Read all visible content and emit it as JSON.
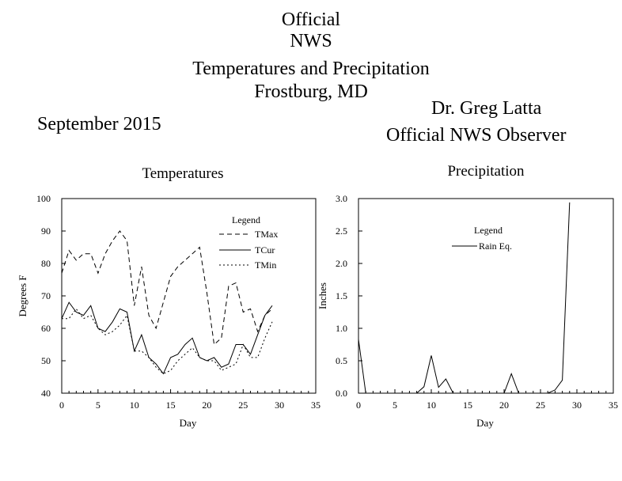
{
  "header": {
    "line1": "Official",
    "line2": "NWS",
    "line3": "Temperatures and Precipitation",
    "line4": "Frostburg, MD",
    "observer_name": "Dr. Greg Latta",
    "observer_title": "Official NWS Observer",
    "month": "September 2015"
  },
  "chart_data": [
    {
      "type": "line",
      "title": "Temperatures",
      "xlabel": "Day",
      "ylabel": "Degrees F",
      "xlim": [
        0,
        35
      ],
      "ylim": [
        40,
        100
      ],
      "xticks": [
        0,
        5,
        10,
        15,
        20,
        25,
        30,
        35
      ],
      "yticks": [
        40,
        50,
        60,
        70,
        80,
        90,
        100
      ],
      "legend_title": "Legend",
      "legend_position": "top-right",
      "grid": false,
      "series": [
        {
          "name": "TMax",
          "style": "dashed",
          "x": [
            0,
            1,
            2,
            3,
            4,
            5,
            6,
            7,
            8,
            9,
            10,
            11,
            12,
            13,
            14,
            15,
            16,
            17,
            18,
            19,
            20,
            21,
            22,
            23,
            24,
            25,
            26,
            27,
            28,
            29
          ],
          "y": [
            77,
            84,
            81,
            83,
            83,
            77,
            83,
            87,
            90,
            87,
            67,
            79,
            64,
            60,
            68,
            76,
            79,
            81,
            83,
            85,
            71,
            55,
            57,
            73,
            74,
            65,
            66,
            59,
            64,
            66
          ]
        },
        {
          "name": "TCur",
          "style": "solid",
          "x": [
            0,
            1,
            2,
            3,
            4,
            5,
            6,
            7,
            8,
            9,
            10,
            11,
            12,
            13,
            14,
            15,
            16,
            17,
            18,
            19,
            20,
            21,
            22,
            23,
            24,
            25,
            26,
            27,
            28,
            29
          ],
          "y": [
            63,
            68,
            65,
            64,
            67,
            60,
            59,
            62,
            66,
            65,
            53,
            58,
            51,
            49,
            46,
            51,
            52,
            55,
            57,
            51,
            50,
            51,
            48,
            49,
            55,
            55,
            52,
            58,
            64,
            67
          ]
        },
        {
          "name": "TMin",
          "style": "dotted",
          "x": [
            0,
            1,
            2,
            3,
            4,
            5,
            6,
            7,
            8,
            9,
            10,
            11,
            12,
            13,
            14,
            15,
            16,
            17,
            18,
            19,
            20,
            21,
            22,
            23,
            24,
            25,
            26,
            27,
            28,
            29
          ],
          "y": [
            63,
            63,
            66,
            63,
            64,
            60,
            58,
            59,
            61,
            64,
            53,
            53,
            51,
            48,
            46,
            47,
            50,
            52,
            54,
            51,
            50,
            50,
            47,
            48,
            49,
            55,
            51,
            51,
            57,
            62
          ]
        }
      ]
    },
    {
      "type": "line",
      "title": "Precipitation",
      "xlabel": "Day",
      "ylabel": "Inches",
      "xlim": [
        0,
        35
      ],
      "ylim": [
        0,
        3
      ],
      "xticks": [
        0,
        5,
        10,
        15,
        20,
        25,
        30,
        35
      ],
      "yticks": [
        "0.0",
        "0.5",
        "1.0",
        "1.5",
        "2.0",
        "2.5",
        "3.0"
      ],
      "legend_title": "Legend",
      "legend_position": "top-right",
      "grid": false,
      "series": [
        {
          "name": "Rain Eq.",
          "style": "solid",
          "x": [
            0,
            1,
            2,
            3,
            4,
            5,
            6,
            7,
            8,
            9,
            10,
            11,
            12,
            13,
            14,
            15,
            16,
            17,
            18,
            19,
            20,
            21,
            22,
            23,
            24,
            25,
            26,
            27,
            28,
            29
          ],
          "y": [
            0.83,
            0,
            0,
            0,
            0,
            0,
            0,
            0,
            0,
            0.1,
            0.58,
            0.09,
            0.22,
            0,
            0,
            0,
            0,
            0,
            0,
            0,
            0,
            0.3,
            0,
            0,
            0,
            0,
            0,
            0.05,
            0.2,
            2.94
          ]
        }
      ]
    }
  ]
}
